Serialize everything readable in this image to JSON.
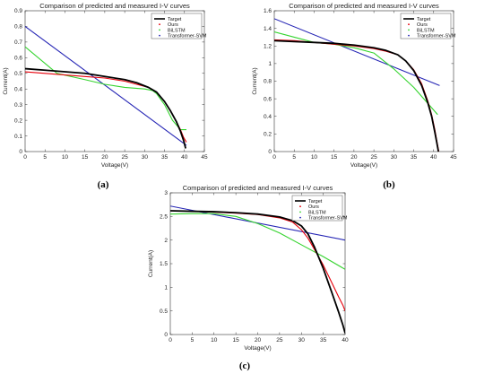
{
  "colors": {
    "target": "#000000",
    "ours": "#e8000b",
    "bilstm": "#35d42f",
    "transformer": "#2626b5"
  },
  "chart_data": [
    {
      "panel_label": "(a)",
      "type": "line",
      "title": "Comparison of predicted and measured I-V curves",
      "xlabel": "Voltage(V)",
      "ylabel": "Current(A)",
      "xlim": [
        0,
        45
      ],
      "ylim": [
        0,
        0.9
      ],
      "xticks": [
        0,
        5,
        10,
        15,
        20,
        25,
        30,
        35,
        40,
        45
      ],
      "yticks": [
        0,
        0.1,
        0.2,
        0.3,
        0.4,
        0.5,
        0.6,
        0.7,
        0.8,
        0.9
      ],
      "legend_position": "top-right",
      "series": [
        {
          "name": "Target",
          "x": [
            0,
            5,
            10,
            15,
            20,
            25,
            28,
            31,
            33,
            35,
            36.5,
            38,
            39,
            39.8,
            40.3
          ],
          "y": [
            0.53,
            0.52,
            0.51,
            0.5,
            0.48,
            0.46,
            0.44,
            0.41,
            0.38,
            0.32,
            0.26,
            0.19,
            0.13,
            0.07,
            0.02
          ]
        },
        {
          "name": "Ours",
          "x": [
            0,
            5,
            10,
            15,
            20,
            25,
            28,
            31,
            33,
            35,
            36.5,
            38,
            39,
            39.8,
            40.5
          ],
          "y": [
            0.51,
            0.5,
            0.49,
            0.48,
            0.47,
            0.45,
            0.43,
            0.41,
            0.38,
            0.32,
            0.26,
            0.19,
            0.14,
            0.09,
            0.06
          ]
        },
        {
          "name": "BiLSTM",
          "x": [
            0,
            8,
            15,
            20,
            25,
            30,
            32,
            33,
            35,
            37,
            39,
            40.5
          ],
          "y": [
            0.67,
            0.5,
            0.46,
            0.43,
            0.41,
            0.4,
            0.39,
            0.37,
            0.3,
            0.2,
            0.14,
            0.14
          ]
        },
        {
          "name": "Transformer-SVM",
          "x": [
            0,
            40.5
          ],
          "y": [
            0.8,
            0.04
          ]
        }
      ]
    },
    {
      "panel_label": "(b)",
      "type": "line",
      "title": "Comparison of predicted and measured I-V curves",
      "xlabel": "Voltage(V)",
      "ylabel": "Current(A)",
      "xlim": [
        0,
        45
      ],
      "ylim": [
        0,
        1.6
      ],
      "xticks": [
        0,
        5,
        10,
        15,
        20,
        25,
        30,
        35,
        40,
        45
      ],
      "yticks": [
        0,
        0.2,
        0.4,
        0.6,
        0.8,
        1,
        1.2,
        1.4,
        1.6
      ],
      "legend_position": "top-right",
      "series": [
        {
          "name": "Target",
          "x": [
            0,
            5,
            10,
            15,
            20,
            25,
            28,
            31,
            33,
            35,
            37,
            38.5,
            39.5,
            40.3,
            40.8,
            41.2
          ],
          "y": [
            1.26,
            1.25,
            1.24,
            1.23,
            1.21,
            1.18,
            1.15,
            1.1,
            1.03,
            0.92,
            0.75,
            0.56,
            0.4,
            0.22,
            0.1,
            0.0
          ]
        },
        {
          "name": "Ours",
          "x": [
            0,
            5,
            10,
            15,
            20,
            25,
            28,
            31,
            33,
            35,
            37,
            38.5,
            39.5,
            40.3,
            40.8,
            41.3
          ],
          "y": [
            1.27,
            1.26,
            1.24,
            1.22,
            1.2,
            1.17,
            1.14,
            1.1,
            1.03,
            0.93,
            0.77,
            0.58,
            0.42,
            0.25,
            0.12,
            0.0
          ]
        },
        {
          "name": "BiLSTM",
          "x": [
            0,
            5,
            10,
            15,
            20,
            25,
            30,
            35,
            41
          ],
          "y": [
            1.36,
            1.3,
            1.24,
            1.22,
            1.18,
            1.12,
            0.94,
            0.73,
            0.42
          ]
        },
        {
          "name": "Transformer-SVM",
          "x": [
            0,
            41.5
          ],
          "y": [
            1.51,
            0.75
          ]
        }
      ]
    },
    {
      "panel_label": "(c)",
      "type": "line",
      "title": "Comparison of predicted and measured I-V curves",
      "xlabel": "Voltage(V)",
      "ylabel": "Current(A)",
      "xlim": [
        0,
        40
      ],
      "ylim": [
        0,
        3
      ],
      "xticks": [
        0,
        5,
        10,
        15,
        20,
        25,
        30,
        35,
        40
      ],
      "yticks": [
        0,
        0.5,
        1,
        1.5,
        2,
        2.5,
        3
      ],
      "legend_position": "top-right",
      "series": [
        {
          "name": "Target",
          "x": [
            0,
            5,
            10,
            15,
            20,
            25,
            28,
            30,
            31.5,
            33,
            35,
            37,
            38.5,
            39.5,
            40
          ],
          "y": [
            2.62,
            2.61,
            2.6,
            2.58,
            2.55,
            2.49,
            2.41,
            2.3,
            2.13,
            1.85,
            1.4,
            0.88,
            0.48,
            0.2,
            0.03
          ]
        },
        {
          "name": "Ours",
          "x": [
            0,
            5,
            10,
            15,
            20,
            25,
            28,
            30,
            31.5,
            33,
            35,
            37,
            38.5,
            39.5,
            40
          ],
          "y": [
            2.62,
            2.61,
            2.59,
            2.57,
            2.54,
            2.47,
            2.38,
            2.22,
            2.04,
            1.8,
            1.47,
            1.09,
            0.8,
            0.62,
            0.5
          ]
        },
        {
          "name": "BiLSTM",
          "x": [
            0,
            5,
            10,
            15,
            20,
            25,
            30,
            35,
            40
          ],
          "y": [
            2.55,
            2.56,
            2.56,
            2.5,
            2.35,
            2.15,
            1.9,
            1.65,
            1.38
          ]
        },
        {
          "name": "Transformer-SVM",
          "x": [
            0,
            40
          ],
          "y": [
            2.72,
            2.0
          ]
        }
      ]
    }
  ]
}
